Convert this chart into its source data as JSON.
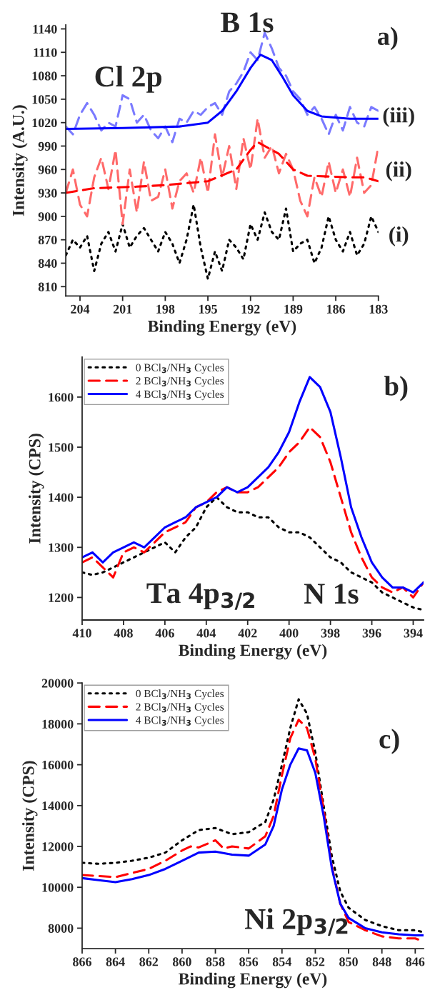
{
  "chart_data": [
    {
      "type": "line",
      "xlabel": "Binding Energy (eV)",
      "ylabel": "Intensity (A.U.)",
      "xlim": [
        205,
        183
      ],
      "xticks": [
        204,
        201,
        198,
        195,
        192,
        189,
        186,
        183
      ],
      "ylim": [
        798,
        1145
      ],
      "yticks": [
        810,
        840,
        870,
        900,
        930,
        960,
        990,
        1020,
        1050,
        1080,
        1110,
        1140
      ],
      "x": [
        205,
        204.5,
        204,
        203.5,
        203,
        202.5,
        202,
        201.5,
        201,
        200.5,
        200,
        199.5,
        199,
        198.5,
        198,
        197.5,
        197,
        196.5,
        196,
        195.5,
        195,
        194.5,
        194,
        193.5,
        193,
        192.5,
        192,
        191.5,
        191,
        190.5,
        190,
        189.5,
        189,
        188.5,
        188,
        187.5,
        187,
        186.5,
        186,
        185.5,
        185,
        184.5,
        184,
        183.5,
        183
      ],
      "series": [
        {
          "color": "#000000",
          "line_style": "dotted",
          "values": [
            850,
            870,
            860,
            875,
            830,
            865,
            880,
            855,
            890,
            860,
            875,
            885,
            870,
            855,
            880,
            865,
            840,
            870,
            915,
            860,
            820,
            855,
            830,
            870,
            860,
            845,
            890,
            870,
            905,
            880,
            870,
            910,
            855,
            865,
            870,
            840,
            860,
            900,
            870,
            855,
            880,
            850,
            865,
            900,
            880
          ]
        },
        {
          "color": "#ff6a6a",
          "line_style": "dashed",
          "values": [
            930,
            960,
            915,
            900,
            950,
            975,
            935,
            985,
            890,
            960,
            905,
            970,
            920,
            925,
            960,
            910,
            945,
            955,
            930,
            975,
            930,
            1005,
            950,
            990,
            935,
            1000,
            960,
            1025,
            975,
            990,
            955,
            980,
            960,
            920,
            900,
            950,
            925,
            970,
            930,
            960,
            925,
            975,
            930,
            940,
            990
          ]
        },
        {
          "color": "#ff0000",
          "line_style": "dashed",
          "x": [
            205,
            203,
            200,
            198,
            195,
            193,
            192,
            191.5,
            190,
            189,
            188,
            185,
            184,
            183
          ],
          "values": [
            930,
            936,
            938,
            940,
            945,
            960,
            985,
            995,
            980,
            960,
            952,
            950,
            950,
            945
          ]
        },
        {
          "color": "#7a7aff",
          "line_style": "dashed",
          "values": [
            1015,
            1005,
            1030,
            1045,
            1030,
            1010,
            1020,
            1015,
            1055,
            1050,
            1020,
            1030,
            1010,
            1000,
            1015,
            995,
            1025,
            1020,
            1035,
            1030,
            1040,
            1045,
            1030,
            1060,
            1070,
            1085,
            1110,
            1100,
            1135,
            1115,
            1090,
            1080,
            1060,
            1050,
            1030,
            1040,
            1025,
            1005,
            1030,
            1010,
            1040,
            1020,
            1015,
            1040,
            1035
          ]
        },
        {
          "color": "#0000ff",
          "line_style": "solid",
          "x": [
            205,
            201,
            197,
            195,
            194,
            193,
            192,
            191.3,
            190.5,
            189.8,
            189,
            188,
            187,
            185,
            183
          ],
          "values": [
            1012,
            1013,
            1015,
            1020,
            1035,
            1060,
            1090,
            1107,
            1100,
            1080,
            1055,
            1035,
            1028,
            1025,
            1025
          ]
        }
      ],
      "annotations": [
        "Cl 2p",
        "B 1s",
        "a)",
        "(iii)",
        "(ii)",
        "(i)"
      ]
    },
    {
      "type": "line",
      "xlabel": "Binding Energy (eV)",
      "ylabel": "Intensity (CPS)",
      "legend": "top left",
      "xlim": [
        410,
        393.5
      ],
      "xticks": [
        410,
        408,
        406,
        404,
        402,
        400,
        398,
        396,
        394
      ],
      "ylim": [
        1155,
        1680
      ],
      "yticks": [
        1200,
        1300,
        1400,
        1500,
        1600
      ],
      "x": [
        410,
        409.5,
        409,
        408.5,
        408,
        407.5,
        407,
        406.5,
        406,
        405.5,
        405,
        404.5,
        404,
        403.5,
        403,
        402.5,
        402,
        401.5,
        401,
        400.5,
        400,
        399.5,
        399,
        398.5,
        398,
        397.5,
        397,
        396.5,
        396,
        395.5,
        395,
        394.5,
        394,
        393.5
      ],
      "series": [
        {
          "name": "0 BCl$_{3}$/NH$_{3}$ Cycles",
          "color": "#000000",
          "line_style": "dotted",
          "values": [
            1250,
            1245,
            1250,
            1260,
            1270,
            1280,
            1290,
            1300,
            1310,
            1290,
            1320,
            1340,
            1380,
            1400,
            1380,
            1370,
            1370,
            1360,
            1360,
            1340,
            1330,
            1330,
            1320,
            1300,
            1280,
            1270,
            1250,
            1240,
            1230,
            1210,
            1200,
            1190,
            1180,
            1175
          ]
        },
        {
          "name": "2 BCl$_{3}$/NH$_{3}$ Cycles",
          "color": "#ff0000",
          "line_style": "dashed",
          "values": [
            1270,
            1280,
            1260,
            1240,
            1290,
            1300,
            1290,
            1310,
            1330,
            1340,
            1350,
            1380,
            1390,
            1410,
            1420,
            1410,
            1410,
            1420,
            1440,
            1460,
            1490,
            1510,
            1540,
            1520,
            1470,
            1400,
            1330,
            1280,
            1240,
            1220,
            1210,
            1220,
            1200,
            1230
          ]
        },
        {
          "name": "4 BCl$_{3}$/NH$_{3}$ Cycles",
          "color": "#0000ff",
          "line_style": "solid",
          "values": [
            1280,
            1290,
            1270,
            1290,
            1300,
            1310,
            1300,
            1320,
            1340,
            1350,
            1360,
            1380,
            1390,
            1400,
            1420,
            1410,
            1420,
            1440,
            1460,
            1490,
            1530,
            1590,
            1640,
            1620,
            1570,
            1480,
            1380,
            1320,
            1270,
            1240,
            1220,
            1220,
            1210,
            1230
          ]
        }
      ],
      "annotations": [
        "b)",
        "Ta 4p$_{3/2}$",
        "N 1s"
      ]
    },
    {
      "type": "line",
      "xlabel": "Binding Energy (eV)",
      "ylabel": "Intensity (CPS)",
      "legend": "top left",
      "xlim": [
        866,
        845.5
      ],
      "xticks": [
        866,
        864,
        862,
        860,
        858,
        856,
        854,
        852,
        850,
        848,
        846
      ],
      "ylim": [
        7000,
        20000
      ],
      "yticks": [
        8000,
        10000,
        12000,
        14000,
        16000,
        18000,
        20000
      ],
      "series": [
        {
          "name": "0 BCl$_{3}$/NH$_{3}$ Cycles",
          "color": "#000000",
          "line_style": "dotted",
          "x": [
            866,
            865,
            864,
            863,
            862,
            861,
            860,
            859,
            858,
            857,
            856,
            855,
            854.5,
            854,
            853.5,
            853,
            852.5,
            852,
            851.5,
            851,
            850.5,
            850,
            849,
            848,
            847,
            846,
            845.5
          ],
          "values": [
            11200,
            11150,
            11200,
            11300,
            11450,
            11700,
            12300,
            12800,
            12900,
            12600,
            12700,
            13200,
            14300,
            16000,
            17800,
            19200,
            18500,
            16600,
            14000,
            11500,
            9800,
            9000,
            8400,
            8100,
            7900,
            7900,
            7800
          ]
        },
        {
          "name": "2 BCl$_{3}$/NH$_{3}$ Cycles",
          "color": "#ff0000",
          "line_style": "dashed",
          "x": [
            866,
            865,
            864,
            863,
            862,
            861,
            860,
            859.5,
            859,
            858,
            857.5,
            857,
            856,
            855,
            854.5,
            854,
            853.5,
            853,
            852.5,
            852,
            851.5,
            851,
            850.5,
            850,
            849,
            848,
            847,
            846,
            845.5
          ],
          "values": [
            10600,
            10550,
            10500,
            10700,
            10900,
            11300,
            11800,
            12000,
            11950,
            12300,
            11900,
            12000,
            11900,
            12500,
            13500,
            15500,
            17300,
            18200,
            17800,
            16300,
            13800,
            11000,
            9200,
            8300,
            7900,
            7600,
            7500,
            7500,
            7350
          ]
        },
        {
          "name": "4 BCl$_{3}$/NH$_{3}$ Cycles",
          "color": "#0000ff",
          "line_style": "solid",
          "x": [
            866,
            865,
            864,
            863,
            862,
            861,
            860,
            859,
            858,
            857,
            856,
            855,
            854.5,
            854,
            853.5,
            853,
            852.5,
            852,
            851.5,
            851,
            850.5,
            850,
            849,
            848,
            847,
            846,
            845.5
          ],
          "values": [
            10450,
            10350,
            10250,
            10400,
            10600,
            10900,
            11300,
            11700,
            11750,
            11600,
            11550,
            12100,
            13000,
            14800,
            16000,
            16800,
            16700,
            15600,
            13500,
            10900,
            9200,
            8500,
            8000,
            7800,
            7700,
            7650,
            7650
          ]
        }
      ],
      "annotations": [
        "c)",
        "Ni 2p$_{3/2}$"
      ]
    }
  ]
}
